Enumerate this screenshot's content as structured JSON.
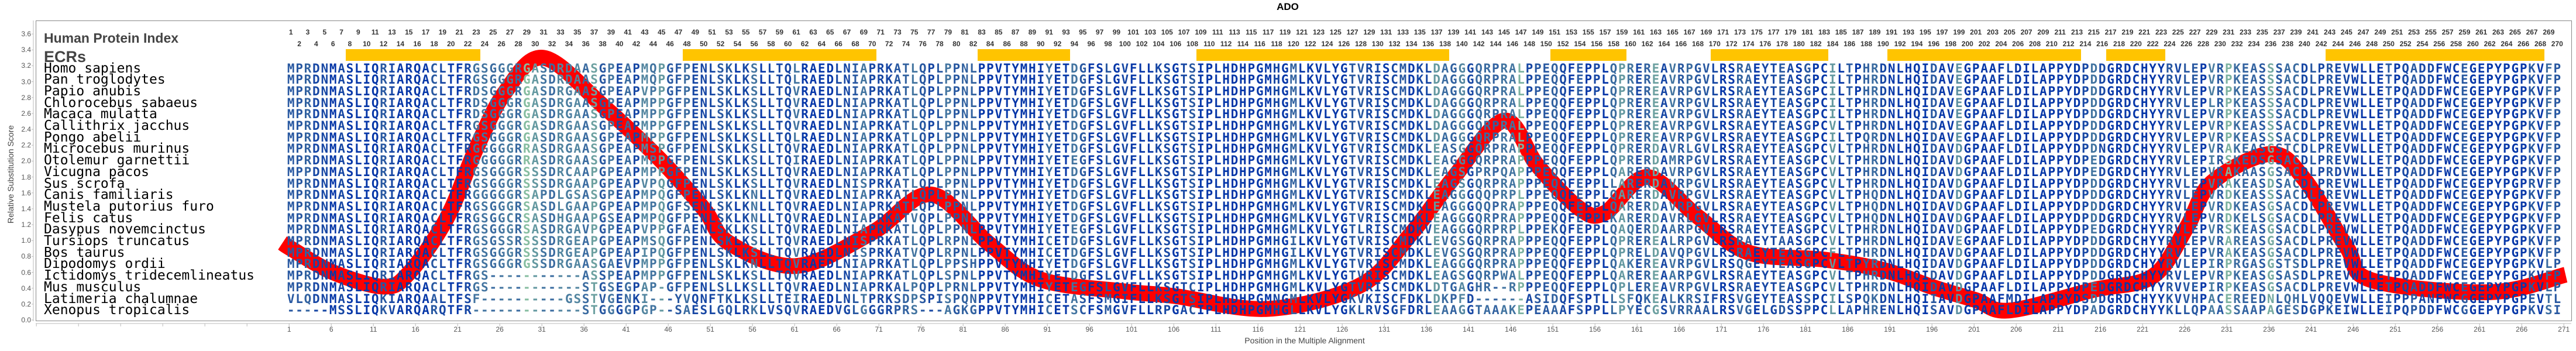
{
  "title": "ADO",
  "labels": {
    "index_row": "Human Protein Index",
    "ecr_row": "ECRs"
  },
  "colors": {
    "curve": "#ff0000",
    "ecr": "#ffc400",
    "conserved": "#0637a8",
    "mid": "#2b5ba0",
    "variable": "#86bda0"
  },
  "chart_data": {
    "type": "line",
    "title": "ADO",
    "xlabel": "Position in the Multiple Alignment",
    "ylabel": "Relative Substitution Score",
    "ylim": [
      0.0,
      3.6
    ],
    "y_ticks": [
      "0.0",
      "0.2",
      "0.4",
      "0.6",
      "0.8",
      "1.0",
      "1.2",
      "1.4",
      "1.6",
      "1.8",
      "2.0",
      "2.2",
      "2.4",
      "2.6",
      "2.8",
      "3.0",
      "3.2",
      "3.4",
      "3.6"
    ],
    "x_ticks": [
      1,
      6,
      11,
      16,
      21,
      26,
      31,
      36,
      41,
      46,
      51,
      56,
      61,
      66,
      71,
      76,
      81,
      86,
      91,
      96,
      101,
      106,
      111,
      116,
      121,
      126,
      131,
      136,
      141,
      146,
      151,
      156,
      161,
      166,
      171,
      176,
      181,
      186,
      191,
      196,
      201,
      206,
      211,
      216,
      221,
      226,
      231,
      236,
      241,
      246,
      251,
      256,
      261,
      266,
      271
    ],
    "index_range": [
      1,
      270
    ],
    "ecrs": [
      [
        8,
        23
      ],
      [
        48,
        70
      ],
      [
        83,
        93
      ],
      [
        109,
        138
      ],
      [
        151,
        159
      ],
      [
        170,
        183
      ],
      [
        191,
        213
      ],
      [
        217,
        223
      ],
      [
        243,
        268
      ]
    ],
    "series": [
      {
        "name": "Relative Substitution Score",
        "x": [
          0,
          1,
          6,
          12,
          15,
          19.5,
          23,
          26.5,
          31,
          38,
          45,
          50,
          53,
          61,
          70,
          77,
          84,
          90,
          100,
          106,
          117,
          128,
          134,
          139,
          145,
          149,
          154,
          157,
          162,
          168,
          174,
          183,
          190,
          196,
          201,
          205,
          215,
          222,
          226,
          229,
          236,
          240,
          245,
          248,
          262,
          271
        ],
        "y": [
          0.97,
          0.9,
          0.6,
          0.42,
          0.59,
          1.28,
          2.16,
          2.88,
          3.3,
          2.7,
          2.0,
          1.4,
          0.97,
          0.68,
          1.1,
          1.58,
          0.95,
          0.51,
          0.36,
          0.3,
          0.14,
          0.44,
          1.09,
          1.79,
          2.51,
          1.94,
          1.4,
          1.35,
          1.8,
          1.3,
          0.85,
          0.76,
          0.63,
          0.41,
          0.25,
          0.12,
          0.38,
          0.55,
          1.16,
          1.73,
          2.09,
          1.77,
          0.92,
          0.5,
          0.35,
          0.57
        ]
      }
    ],
    "alignment": [
      {
        "species": "Homo sapiens",
        "seq": [
          "MPRDNMASLIQRIARQACLTFRGSGGGRGASDRDAASGPEAPMQPGFPENLS",
          "KLKSLLTQLRAEDLNIAPRKATLQPLPPNLPPVTYMHIYETDGFSLGVFLLKS",
          "GTSIPLHDHPGMHGMLKVLYGTVRISCMDKLDAGGGQRPRALPPEQQ",
          "FEPPLQPREREAVRPGVLRSRAEYTEASGPCILTPHRDNLHQIDAVE",
          "GPAAFLDILAPPYDPDDGRDCHYYRVLEPVRPKEASSSACDLPREVWLL",
          "ETPQADDFWCEGEPYPGPKVFP"
        ]
      },
      {
        "species": "Pan troglodytes",
        "seq": [
          "MPRDNMASLIQRIARQACLTFRGSGGGRGASDRDAASGPEAPMQPGFPENLS",
          "KLKSLLTQLRAEDLNIAPRKATLQPLPPNLPPVTYMHIYETDGFSLGVFLLKS",
          "GTSIPLHDHPGMHGMLKVLYGTVRISCMDKLDAGGGQRPRALPPEQQ",
          "FEPPLQPREREAVRPGVLRSRAEYTEASGPCILTPHRDNLHQIDAVE",
          "GPAAFLDILAPPYDPDDGRDCHYYRVLEPVRPKEASSSACDLPREVWLL",
          "ETPQADDFWCEGEPYPGPKVFP"
        ]
      },
      {
        "species": "Papio anubis",
        "seq": [
          "MPRDNMASLIQRIARQACLTFRDSGGGRGASDRGAASGPEAPVPPGFPENLS",
          "KLKSLLTQVRAEDLNIAPRKATLQPLPPNLPPVTYMHIYETDGFSLGVFLLKS",
          "GTSIPLHDHPGMHGMLKVLYGTVRISCMDKLDAGGGQRPRALPPEQQ",
          "FEPPLQPREREAVRPGVLRSRAEYTEASGPCILTPHRDNLHQIDAVE",
          "GPAAFLDILAPPYDPDDGRDCHYYRVLEPVRPKEASSSACDLPREVWLL",
          "ETPQADDFWCEGEPYPGPKVFP"
        ]
      },
      {
        "species": "Chlorocebus sabaeus",
        "seq": [
          "MPRDNMASLIQRIARQACLTFRDSGGGRGASDRGAASGPEAPMPPGFPENLS",
          "KLKSLLTQVRAEDLNIAPRKATLQPLPPNLPPVTYMHIYETDGFSLGVFLLKS",
          "GTSIPLHDHPGMHGMLKVLYGTVRISCMDKLDAGGGQRPRALPPEQQ",
          "FEPPLQPREREAVRPGVLRSRAEYTEASGPCILTPHRDNLHQIDAVE",
          "GPAAFLDILAPPYDPDDGRDCHYYRVLEPLRPKEASSSACDLPREVWLL",
          "ETPQADDFWCEGEPYPGPKVFP"
        ]
      },
      {
        "species": "Macaca mulatta",
        "seq": [
          "MPRDNMASLIQRIARQACLTFRDSGGGRGASDRGAASGPEAPMPPGFPENLS",
          "KLKSLLTQVRAEDLNIAPRKATLQPLPPNLPPVTYMHIYETDGFSLGVFLLKS",
          "GTSIPLHDHPGMHGMLKVLYGTVRISCMDKLDAGGGQRPRALPPEQQ",
          "FEPPLQPREREAVRPGVLRSRAEYTEASGPCILTPHRDNLHQIDAVE",
          "GPAAFLDILAPPYDPDDGRDCHYYRVLEPVRPKEASSSACDLPREVWLL",
          "ETPQADDFWCEGEPYPGPKVFP"
        ]
      },
      {
        "species": "Callithrix jacchus",
        "seq": [
          "MPRDNMASLIQRIARQACLTFRGSGGGRGASDRGAASGPEAPMPPGFPENLS",
          "KLKSLLTQVRAEDLNIAPRKATLQPLPPNLPPVTYMHIYETDGFSLGVFLLKS",
          "GTSIPLHDHPGMHGMLKVLYGTVRISCMDKLDAGGGQRPRALPPEQQ",
          "FEPPLQPREREAVRPGVLRSRAEYTEASGPCVLTPHRDNLHQIDAVE",
          "GPAAFLDILAPPYDPDDGRDCHYYRVLEPVRPKEASSSACDLPREVWLL",
          "ETPQADDFWCEGEPYPGPKVFP"
        ]
      },
      {
        "species": "Pongo abelii",
        "seq": [
          "MPRDNMASLIQRIARQACLTFRGSGGGRGASDRGAASGPEAPMPPGFPENLS",
          "KLKSLLTQLRAEDLNIAPRKATLQPLPPNLPPVTYMHIYETDGFSLGVFLLKS",
          "GTSIPLHDHPGMHGMLKVLYGTVRISCMDKLDAGGGQRPRALPPEQQ",
          "FEPPLQPREREAVRPGVLRSRAEYTEASGPCILTPQRDNLHQIDAVE",
          "GPAAFLDILAPPYDPDDGRDCHYYRVLEPVRPKEASSSACDLPREVWLL",
          "ETPQADDFWCEGEPYPGPKVFP"
        ]
      },
      {
        "species": "Microcebus murinus",
        "seq": [
          "MPRDNMASLIQRIARQACLTFRGGGGGRRASDRGAASGPEAPMSPGFPENLS",
          "KLKSLLTQVRAEDLNIAPRKATLQPLPPNLPPVTYMHIYETDGFSLGVFLLKS",
          "GTSIPLHDHPGMHGMLKVLYGTVRISCMDKLEASGGQRPRAPPPEQQ",
          "FEPPLQPRERDAVRLGVLRSRAEYTEASGPCVLTPHRDNLHQIDAVD",
          "GPAAFLDILAPPYDPDNGRDCHYYRVLEPVRAKEASGSTCDLPREVWLL",
          "ETPQADDFWCEGEPYPGPKVFP"
        ]
      },
      {
        "species": "Otolemur garnettii",
        "seq": [
          "MPRDNMASLIQRIARQACLTFRGGGGGRRASDRGAASGPEAPMPPGFPENLS",
          "KLKSLLTQIRAEDLNIAPRKATLQPLPPNLPPVTYMHIYETEGFSLGVFLLKS",
          "GTSIPLHDHPGMHGMLKVLYGTVRISCMDKLEAGGGQRPRAPPPEQQ",
          "FEPPLQPRERDAMRPGVLRSRAEYTEASGPCVLTPHRDNLHQIDAVD",
          "GPAAFLDILAPPYDPEDGRDCHYYRVLEPIRSKEDSGSACDLPREVWLL",
          "ETPQADDFWCEGEPYPGPKVFP"
        ]
      },
      {
        "species": "Vicugna pacos",
        "seq": [
          "MPPDNMASLIQRIARQACLTFRGSGGGRSSSDRCAAPGPEAPMPPGFPENLS",
          "KLKSLLTQVRAEDLNIAPRKATLQPLPPNLPPVTYMHIYETDGFSLGVFLLKS",
          "GTSIPLHDHPGMHGMLKVLYGTVRISCMDKLEAGSGPRPQAPPPEQQ",
          "FEPPLQARERDAVRPGVLRSRAEYTEASGPCVLTPHRDNLHQIDAVD",
          "GPAAFLDILAPPYDPEDGRDCHYYRVLEPVRAKAASGSACDLPRDVWLL",
          "ETPQADDFWCEGEPYPGPKVFP"
        ]
      },
      {
        "species": "Sus scrofa",
        "seq": [
          "MPRDNMASLIQRIARQACLTFRGSGGGRSSSDRGAAPGPEAPVPQGFPENLS",
          "KLKSLLTQVRAEDLNISPRKATLQPLPPNLPPVTYMHIYETDGFSLGVFLLKS",
          "GTSIPLHDHPGMHGMLKVLYGTVRISCMDKLEAGSGQRPRAPPPEQQ",
          "FEPPLLARERDAVRPGVLRSRAEYTEASGPCVLTPHRDNLHQIDAVD",
          "GPAAFLDILAPPYDPDDGRDCHYYRVLEPVRAKEASDSACDLPREVWLL",
          "ETPQADDFWCEGEPYPGPRVFP"
        ]
      },
      {
        "species": "Canis familiaris",
        "seq": [
          "MPRDNMASLIQRIARQACLTFRGGGGGRSAPDLGSASGPEAPMPQGFPENLS",
          "KLKNLLTQVRAEDLNIAPRKATLQPLPPNLPPVTYMHIYETDGFSLGVFLLKS",
          "GTSIPLHDHPGMHGMLKVLYGTVRISCMDKLEAGGGQQPRPLPPEQQ",
          "FEPPLQARERDAVRPGVLRSRAEYTEASGPCVLTPHQDNLHQIDAVD",
          "GPAAFLDILAPPYDPDDGRDCHYYRVLEPVRDKEASSSACDLPREVWLL",
          "ETPQADDFWCEGEPYPGPKVFP"
        ]
      },
      {
        "species": "Mustela putorius furo",
        "seq": [
          "MPRDNMASLIQRIARQACLTFRGSGGGRSASDLGAAPGPEAPMPQGFSENLS",
          "KLKNLLTQVRAEDLNIAPRKATLQPLPPNLPPVTYMHIYETDGFSLGVFLLKS",
          "GTSIPLHDHPGMHGMLKVLYGTVRISCMDKLEAGGGQQPRAPPPEQQ",
          "FEPPLQARERDAVRPGVLRSRAEYTEASGPCVLTPHQDNLHQIDAVD",
          "GPAAFLDILAPPYDPDDGRDCHYYRVLEPVRDKEASGSACDLPREVWLL",
          "ETPQADDFWCEGEPYPGPKVFP"
        ]
      },
      {
        "species": "Felis catus",
        "seq": [
          "MPRDNMASLIQRIARQACLTFRGSGGCRSASDHGAAPGSEAPMPQGFPENLS",
          "KLKNLLTQVRAEDLNIAPRKATVQPLPPNLPPVTYMHIYETDGFSLGVFLLKS",
          "GTSIPLHDHPGMHGMLKVLYGTVRISCMDKLEAGGGQRPRAPPPEQQ",
          "FEPPLKARERDAVRLGVLRSRAEYTEASGPCVLTPHQDNLHQIDAVD",
          "GPAAFLDILAPPYDPDDGRDCHYYRVLEPVRDKELSGSACDLPREVWLL",
          "ETPQADDFWCEGEPYPGPKVFP"
        ]
      },
      {
        "species": "Dasypus novemcinctus",
        "seq": [
          "MPRDNMASLIQRIARQACLTFRGSGGGRSASDRGAVPGPEAPVPPGFAENLS",
          "KLKSLLTQVRAEDLNIAPRKATLQPLPPNLPPVTYMHIYETEGFSLGVFLLKS",
          "GTSIPLHDHPGMHGMLKVLYGTLRISCMDKVEAGGGQRPRPLPPEKQ",
          "FEPPLQAQERDAARPGVLRSRAEYTEASGPCVLTPHRDNLHQIDAVD",
          "GPAAFLDILAPPYDPEDGRDCHYYRVLEPVRSKEASGSACDLPREVWLL",
          "ETPQADDFWCEGEPYPGPKVFP"
        ]
      },
      {
        "species": "Tursiops truncatus",
        "seq": [
          "MPRDNMASLIQRIARQACLTFRGSGSSRSSSDRGEAPGPEAPMSQGFPENLS",
          "KLKSLLTQVRAEDLNISPRKATLQPLRPNLPPVTYMHICETDGFSLGVFLLKS",
          "GTSIPLHDHPGMHGILKVLYGTVRISCMDKLEVGSGQRPRAPPPEQQ",
          "FEPPLQPREREALRPGVLRSRAEYTAASGPCVLTPHRDNLHQIDAVE",
          "GPAAFLDILAPPYDPDDGRDCHYYRVLEPVRAREASGSACDLPREVWLL",
          "ETPQADDFWCEGEPYPGPKVFP"
        ]
      },
      {
        "species": "Bos taurus",
        "seq": [
          "MPRDNMASLIQRIARQACLTFRGSGGGRSSSDRGEAPGPEAPIPQGFPENLS",
          "KLKSLLTQVRAEDLNISPRKATVQPLRPNLPPVTYMHICETDGFSLGVFLLKS",
          "GTSIPLHDHPGMHGILKVLYGTVRISCMDKLEVGSGQRPRAPPPEQQ",
          "FEPPLQPRELDAVQPGVLRSRAEYTEASGPCFLTPHRDNLHQIDAVD",
          "GPAAFLDILAPPYDPDDGRDCHYYRVLEPVRAKEASGSACDLPREVWLL",
          "ETPQADDFWCEGEPYPGPKVFP"
        ]
      },
      {
        "species": "Dipodomys ordii",
        "seq": [
          "MPRDNMASLIQRIARQACLTFRGSGGGRGSSDRGAASGAEVPMPPGFPENLS",
          "KLKNLLTQVRAEDLNIAPRKATLQPLPPSHPPVTYMHIYETDGFSLGVFLLKS",
          "GTSIPLHDHPGMHGMLKVLYGTVRISCMDKLEAGGGQRPRAPPPEQQ",
          "FEPPLQAKEREAVRPGVLRSQGEYTEASGPCVLTPYRDNLHQIDAVD",
          "GPAAFLDILAPPYDPDDGRDCHYYRVLEPIRPRGASGSTSDLPREVWLL",
          "ETPQADDFWCEGEPYPGPKVLP"
        ]
      },
      {
        "species": "Ictidomys tridecemlineatus",
        "seq": [
          "MPRDNMASLIQRIARQACLTFRGS-----------ASSPEAPMPPGFPENLS",
          "KLKSLLTQVRAEDLNIAPRKATLQPLSPNLPPVTYMHIYETDGFSLGVFLLKS",
          "GTSIPLHDHPGMHGMLKVLYGTVRISCMDKLEAGSGQRPWALPPEQQ",
          "FEPPLQAREREAARPGVLRSRAEYTEASGPCVLTPHRDNLHQIDAVD",
          "GPAAFLDILAPPYDPDDGRDCHYYRVLEPVRPKEASGSASDLPREVWLL",
          "ETPQADDFWCEGEPYPGPKVFP"
        ]
      },
      {
        "species": "Mus musculus",
        "seq": [
          "MPRDNMASLIQRIARQACLTFRGS-----------STGSEGPAP-GFPENLS",
          "LLKSLLTQVRAEDLNIAPRKALPQPLPRNLPPVTYMHIYETEGFSLGVFLLKS",
          "GTCIPLHDHPGMHGMLKVLYGTVRISCMDKLDTGAGHR--RPPPEQQ",
          "FEPPLQPLEREAVRPGVLRSRAEYTEASGPCVLTPHRDNLHQIDAVD",
          "GPAAFLDILAPPYDPEDGRDCHYYRVVEPIRPKEASGSACDLPREVWLL",
          "ETPQADDFWCEGEPYPGPKVLP"
        ]
      },
      {
        "species": "Latimeria chalumnae",
        "seq": [
          "VLQDNMASLIQKIARQAALTFSF----------GSSTVGENKI---YVQNFT",
          "KLKSLLTEIRAEDLNLTPRKSDPSPISPQNPPVTYMHICETASFSMGIFLLKS",
          "GTSIPLHDHPGMNGMLKVLYGKVKISCFDKLDKPFD------ASIDQ",
          "FSPTLLSFQKEALKRSIFRSVGEYTEASSPCILSPQKDNLHQIIAVD",
          "GPAAFMDILAPPYDSDDGRDCHYYKVVHPACEREEDNLQHLVQQEVWLL",
          "EIPPPANFWCGGEPYPGPEVTL"
        ]
      },
      {
        "species": "Xenopus tropicalis",
        "seq": [
          "-----MSSLIQKVARQARQTFR-------------STGGGGPGP--SAESLG",
          "QLRKLVSQVRAEDVGLGGGRPRS---AGKGPPVTYMHICETSCFSMGVFLLRP",
          "GACIPLHDHPGMHGLLKVLYGKLRVSGFDRLEAAGGTAAAKEPEAAA",
          "FSPPLLPYECGSVRRAALRSVGELGDSSPPCLLAPHRENLHQISAVD",
          "GPAAFLDILAPPYDPADGRDCHYYKLLQPAASSAAPAGESDGPKEIWLL",
          "EIPQPDDFWCGGEPYPGPKVSI"
        ]
      }
    ]
  }
}
